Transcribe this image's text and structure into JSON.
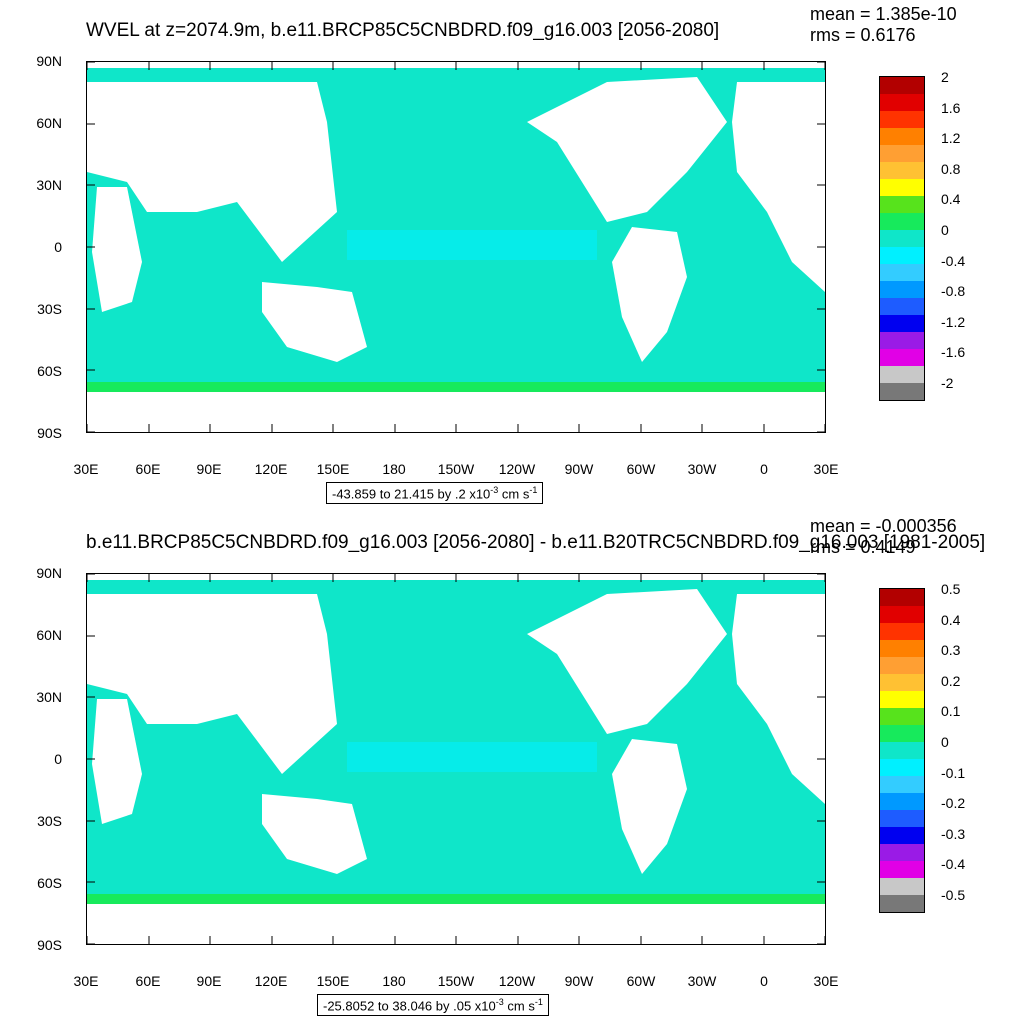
{
  "panels": [
    {
      "title": "WVEL at z=2074.9m, b.e11.BRCP85C5CNBDRD.f09_g16.003 [2056-2080]",
      "stat_mean": "mean = 1.385e-10",
      "stat_rms": "rms = 0.6176",
      "info_prefix": "-43.859 to 21.415 by .2 x10",
      "info_exp": "-3",
      "info_unit": " cm s",
      "info_unit_exp": "-1",
      "colorbar_labels": [
        "2",
        "1.6",
        "1.2",
        "0.8",
        "0.4",
        "0",
        "-0.4",
        "-0.8",
        "-1.2",
        "-1.6",
        "-2"
      ],
      "colorbar_colors": [
        "#b20000",
        "#e10000",
        "#ff3300",
        "#ff8000",
        "#ff9f33",
        "#ffc133",
        "#ffff00",
        "#57e31c",
        "#17ea5c",
        "#0fe6c9",
        "#00f0ff",
        "#33ccff",
        "#0099ff",
        "#1e5cff",
        "#0000f0",
        "#9a1be6",
        "#e100e6",
        "#c8c8c8",
        "#787878"
      ]
    },
    {
      "title": "b.e11.BRCP85C5CNBDRD.f09_g16.003 [2056-2080] - b.e11.B20TRC5CNBDRD.f09_g16.003 [1981-2005]",
      "stat_mean": "mean = -0.000356",
      "stat_rms": "rms = 0.4149",
      "info_prefix": "-25.8052 to 38.046 by .05 x10",
      "info_exp": "-3",
      "info_unit": " cm s",
      "info_unit_exp": "-1",
      "colorbar_labels": [
        "0.5",
        "0.4",
        "0.3",
        "0.2",
        "0.1",
        "0",
        "-0.1",
        "-0.2",
        "-0.3",
        "-0.4",
        "-0.5"
      ],
      "colorbar_colors": [
        "#b20000",
        "#e10000",
        "#ff3300",
        "#ff8000",
        "#ff9f33",
        "#ffc133",
        "#ffff00",
        "#57e31c",
        "#17ea5c",
        "#0fe6c9",
        "#00f0ff",
        "#33ccff",
        "#0099ff",
        "#1e5cff",
        "#0000f0",
        "#9a1be6",
        "#e100e6",
        "#c8c8c8",
        "#787878"
      ]
    }
  ],
  "lat_labels": [
    "90N",
    "60N",
    "30N",
    "0",
    "30S",
    "60S",
    "90S"
  ],
  "lon_labels": [
    "30E",
    "60E",
    "90E",
    "120E",
    "150E",
    "180",
    "150W",
    "120W",
    "90W",
    "60W",
    "30W",
    "0",
    "30E"
  ],
  "map_colors": {
    "ocean_main": "#0fe6c9",
    "ocean_green": "#17ea5c",
    "ocean_cyan": "#00f0ff",
    "land": "#ffffff"
  }
}
